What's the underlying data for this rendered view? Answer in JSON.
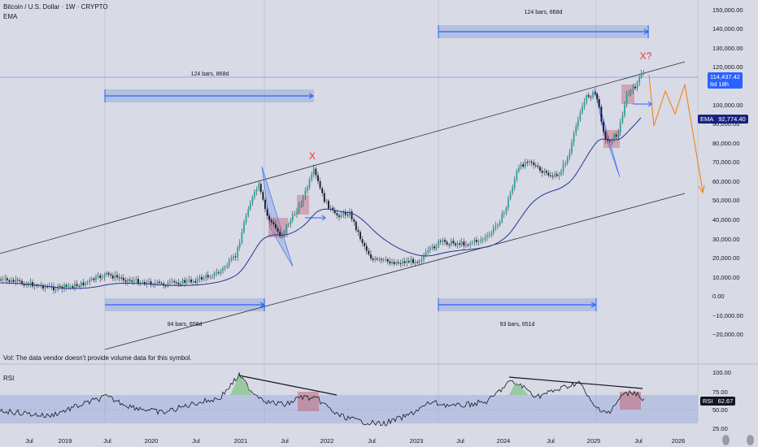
{
  "header": {
    "title": "Bitcoin / U.S. Dollar · 1W · CRYPTO",
    "indicator": "EMA",
    "volume_note": "Vol: The data vendor doesn't provide volume data for this symbol.",
    "rsi_label": "RSI"
  },
  "price_axis": {
    "labels": [
      "150,000.00",
      "140,000.00",
      "130,000.00",
      "120,000.00",
      "110,000.00",
      "100,000.00",
      "90,000.00",
      "80,000.00",
      "70,000.00",
      "60,000.00",
      "50,000.00",
      "40,000.00",
      "30,000.00",
      "20,000.00",
      "10,000.00",
      "0.00",
      "−10,000.00",
      "−20,000.00"
    ],
    "current_price": "114,437.42",
    "countdown": "6d 18h",
    "ema_tag": "EMA",
    "ema_value": "92,774.40"
  },
  "rsi_axis": {
    "labels": [
      "100.00",
      "75.00",
      "50.00",
      "25.00"
    ],
    "value_tag": "RSI",
    "value": "62.67"
  },
  "time_axis": {
    "labels": [
      "Jul",
      "2019",
      "Jul",
      "2020",
      "Jul",
      "2021",
      "Jul",
      "2022",
      "Jul",
      "2023",
      "Jul",
      "2024",
      "Jul",
      "2025",
      "Jul",
      "2026"
    ]
  },
  "annotations": {
    "range_top_left": "124 bars, 868d",
    "range_top_right": "124 bars, 868d",
    "range_bottom_left": "94 bars, 658d",
    "range_bottom_right": "93 bars, 651d",
    "cross_2021": "X",
    "cross_2025": "X?"
  },
  "colors": {
    "background": "#d8dae5",
    "candle_up": "#26a69a",
    "candle_down": "#131722",
    "ema_line": "#283593",
    "channel_line": "#2a2e39",
    "range_box": "#6f8fd8",
    "cross_marker": "#e53935",
    "projection": "#f57c00",
    "price_tag": "#2962ff",
    "ema_tag": "#1a237e"
  }
}
